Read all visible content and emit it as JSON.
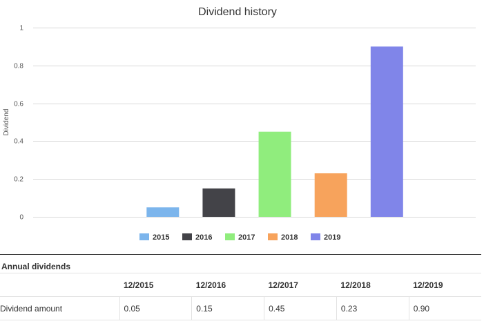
{
  "chart_data": {
    "type": "bar",
    "title": "Dividend history",
    "ylabel": "Dividend",
    "xlabel": "",
    "ylim": [
      0,
      1
    ],
    "yticks": [
      0,
      0.2,
      0.4,
      0.6,
      0.8,
      1
    ],
    "ytick_labels": [
      "0",
      "0.2",
      "0.4",
      "0.6",
      "0.8",
      "1"
    ],
    "grid": true,
    "legend": "bottom",
    "categories": [
      "2015",
      "2016",
      "2017",
      "2018",
      "2019"
    ],
    "values": [
      0.05,
      0.15,
      0.45,
      0.23,
      0.9
    ],
    "colors": [
      "#7cb5ec",
      "#434348",
      "#90ed7d",
      "#f7a35c",
      "#8085e9"
    ]
  },
  "table": {
    "title": "Annual dividends",
    "headers": [
      "12/2015",
      "12/2016",
      "12/2017",
      "12/2018",
      "12/2019"
    ],
    "row_label": "Dividend amount",
    "values": [
      "0.05",
      "0.15",
      "0.45",
      "0.23",
      "0.90"
    ]
  }
}
